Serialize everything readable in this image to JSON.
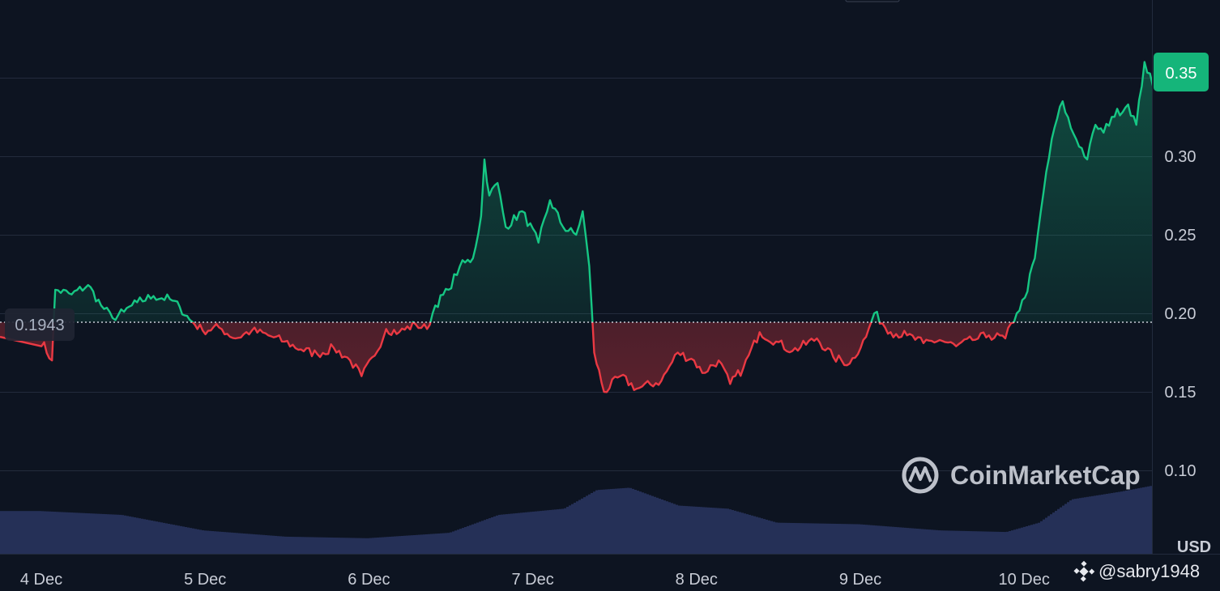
{
  "chart_data": {
    "type": "area",
    "currency_label": "USD",
    "x_ticks": [
      "4 Dec",
      "5 Dec",
      "6 Dec",
      "7 Dec",
      "8 Dec",
      "9 Dec",
      "10 Dec"
    ],
    "y_ticks": [
      "0.10",
      "0.15",
      "0.20",
      "0.25",
      "0.30"
    ],
    "ylim": [
      0.05,
      0.4
    ],
    "grid": true,
    "baseline": {
      "value": 0.1943,
      "label": "0.1943"
    },
    "last_price": {
      "value": 0.35,
      "label": "0.35"
    },
    "colors": {
      "up": "#16c784",
      "down": "#ea3943",
      "volume": "#2a3560",
      "background": "#0d1421"
    },
    "price_series": [
      {
        "t": 0.0,
        "v": 0.185
      },
      {
        "t": 0.08,
        "v": 0.17
      },
      {
        "t": 0.1,
        "v": 0.215
      },
      {
        "t": 0.2,
        "v": 0.212
      },
      {
        "t": 0.3,
        "v": 0.218
      },
      {
        "t": 0.38,
        "v": 0.205
      },
      {
        "t": 0.45,
        "v": 0.197
      },
      {
        "t": 0.52,
        "v": 0.201
      },
      {
        "t": 0.6,
        "v": 0.207
      },
      {
        "t": 0.7,
        "v": 0.211
      },
      {
        "t": 0.8,
        "v": 0.209
      },
      {
        "t": 0.86,
        "v": 0.204
      },
      {
        "t": 0.92,
        "v": 0.196
      },
      {
        "t": 1.0,
        "v": 0.189
      },
      {
        "t": 1.1,
        "v": 0.191
      },
      {
        "t": 1.2,
        "v": 0.184
      },
      {
        "t": 1.3,
        "v": 0.189
      },
      {
        "t": 1.4,
        "v": 0.186
      },
      {
        "t": 1.5,
        "v": 0.182
      },
      {
        "t": 1.6,
        "v": 0.177
      },
      {
        "t": 1.7,
        "v": 0.174
      },
      {
        "t": 1.8,
        "v": 0.178
      },
      {
        "t": 1.9,
        "v": 0.17
      },
      {
        "t": 1.97,
        "v": 0.16
      },
      {
        "t": 2.05,
        "v": 0.173
      },
      {
        "t": 2.12,
        "v": 0.19
      },
      {
        "t": 2.2,
        "v": 0.188
      },
      {
        "t": 2.3,
        "v": 0.193
      },
      {
        "t": 2.37,
        "v": 0.19
      },
      {
        "t": 2.42,
        "v": 0.205
      },
      {
        "t": 2.5,
        "v": 0.215
      },
      {
        "t": 2.57,
        "v": 0.23
      },
      {
        "t": 2.65,
        "v": 0.235
      },
      {
        "t": 2.7,
        "v": 0.262
      },
      {
        "t": 2.72,
        "v": 0.298
      },
      {
        "t": 2.75,
        "v": 0.275
      },
      {
        "t": 2.8,
        "v": 0.283
      },
      {
        "t": 2.85,
        "v": 0.255
      },
      {
        "t": 2.95,
        "v": 0.265
      },
      {
        "t": 3.05,
        "v": 0.245
      },
      {
        "t": 3.12,
        "v": 0.272
      },
      {
        "t": 3.2,
        "v": 0.255
      },
      {
        "t": 3.28,
        "v": 0.25
      },
      {
        "t": 3.32,
        "v": 0.265
      },
      {
        "t": 3.36,
        "v": 0.23
      },
      {
        "t": 3.39,
        "v": 0.175
      },
      {
        "t": 3.45,
        "v": 0.15
      },
      {
        "t": 3.55,
        "v": 0.16
      },
      {
        "t": 3.65,
        "v": 0.152
      },
      {
        "t": 3.8,
        "v": 0.157
      },
      {
        "t": 3.9,
        "v": 0.175
      },
      {
        "t": 4.0,
        "v": 0.17
      },
      {
        "t": 4.05,
        "v": 0.162
      },
      {
        "t": 4.15,
        "v": 0.17
      },
      {
        "t": 4.22,
        "v": 0.155
      },
      {
        "t": 4.3,
        "v": 0.165
      },
      {
        "t": 4.4,
        "v": 0.188
      },
      {
        "t": 4.5,
        "v": 0.182
      },
      {
        "t": 4.6,
        "v": 0.176
      },
      {
        "t": 4.75,
        "v": 0.184
      },
      {
        "t": 4.85,
        "v": 0.172
      },
      {
        "t": 4.95,
        "v": 0.168
      },
      {
        "t": 5.05,
        "v": 0.185
      },
      {
        "t": 5.1,
        "v": 0.2
      },
      {
        "t": 5.2,
        "v": 0.188
      },
      {
        "t": 5.3,
        "v": 0.186
      },
      {
        "t": 5.4,
        "v": 0.181
      },
      {
        "t": 5.5,
        "v": 0.183
      },
      {
        "t": 5.6,
        "v": 0.179
      },
      {
        "t": 5.7,
        "v": 0.183
      },
      {
        "t": 5.8,
        "v": 0.186
      },
      {
        "t": 5.9,
        "v": 0.184
      },
      {
        "t": 5.97,
        "v": 0.2
      },
      {
        "t": 6.02,
        "v": 0.21
      },
      {
        "t": 6.08,
        "v": 0.235
      },
      {
        "t": 6.15,
        "v": 0.29
      },
      {
        "t": 6.2,
        "v": 0.318
      },
      {
        "t": 6.25,
        "v": 0.335
      },
      {
        "t": 6.3,
        "v": 0.318
      },
      {
        "t": 6.4,
        "v": 0.298
      },
      {
        "t": 6.45,
        "v": 0.32
      },
      {
        "t": 6.5,
        "v": 0.315
      },
      {
        "t": 6.55,
        "v": 0.325
      },
      {
        "t": 6.65,
        "v": 0.333
      },
      {
        "t": 6.7,
        "v": 0.32
      },
      {
        "t": 6.75,
        "v": 0.36
      },
      {
        "t": 6.8,
        "v": 0.345
      },
      {
        "t": 6.85,
        "v": 0.358
      },
      {
        "t": 6.9,
        "v": 0.348
      },
      {
        "t": 6.95,
        "v": 0.357
      },
      {
        "t": 7.0,
        "v": 0.332
      },
      {
        "t": 7.05,
        "v": 0.35
      }
    ],
    "volume_series": [
      {
        "t": 0.0,
        "v": 0.55
      },
      {
        "t": 0.5,
        "v": 0.5
      },
      {
        "t": 1.0,
        "v": 0.3
      },
      {
        "t": 1.5,
        "v": 0.22
      },
      {
        "t": 2.0,
        "v": 0.2
      },
      {
        "t": 2.5,
        "v": 0.27
      },
      {
        "t": 2.8,
        "v": 0.5
      },
      {
        "t": 3.2,
        "v": 0.58
      },
      {
        "t": 3.4,
        "v": 0.82
      },
      {
        "t": 3.6,
        "v": 0.85
      },
      {
        "t": 3.9,
        "v": 0.62
      },
      {
        "t": 4.2,
        "v": 0.58
      },
      {
        "t": 4.5,
        "v": 0.4
      },
      {
        "t": 5.0,
        "v": 0.38
      },
      {
        "t": 5.5,
        "v": 0.3
      },
      {
        "t": 5.9,
        "v": 0.28
      },
      {
        "t": 6.1,
        "v": 0.4
      },
      {
        "t": 6.3,
        "v": 0.7
      },
      {
        "t": 6.6,
        "v": 0.8
      },
      {
        "t": 7.05,
        "v": 0.98
      }
    ]
  },
  "watermark": {
    "brand": "CoinMarketCap"
  },
  "overlay": {
    "username": "@sabry1948"
  }
}
